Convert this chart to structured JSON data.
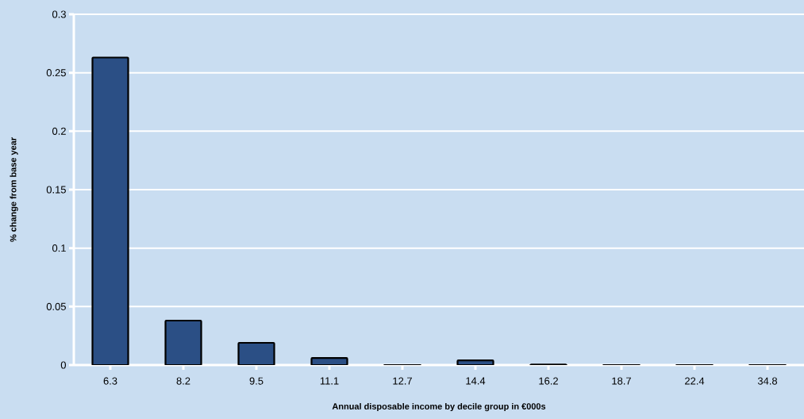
{
  "chart_data": {
    "type": "bar",
    "xlabel": "Annual disposable income by decile group in €000s",
    "ylabel": "% change from base year",
    "categories": [
      "6.3",
      "8.2",
      "9.5",
      "11.1",
      "12.7",
      "14.4",
      "16.2",
      "18.7",
      "22.4",
      "34.8"
    ],
    "values": [
      0.263,
      0.038,
      0.019,
      0.006,
      0,
      0.004,
      0.0005,
      0,
      0,
      0
    ],
    "color": "#2b4f85",
    "ylim": [
      0,
      0.3
    ],
    "yticks": [
      0,
      0.05,
      0.1,
      0.15,
      0.2,
      0.25,
      0.3
    ],
    "grid": "y"
  }
}
